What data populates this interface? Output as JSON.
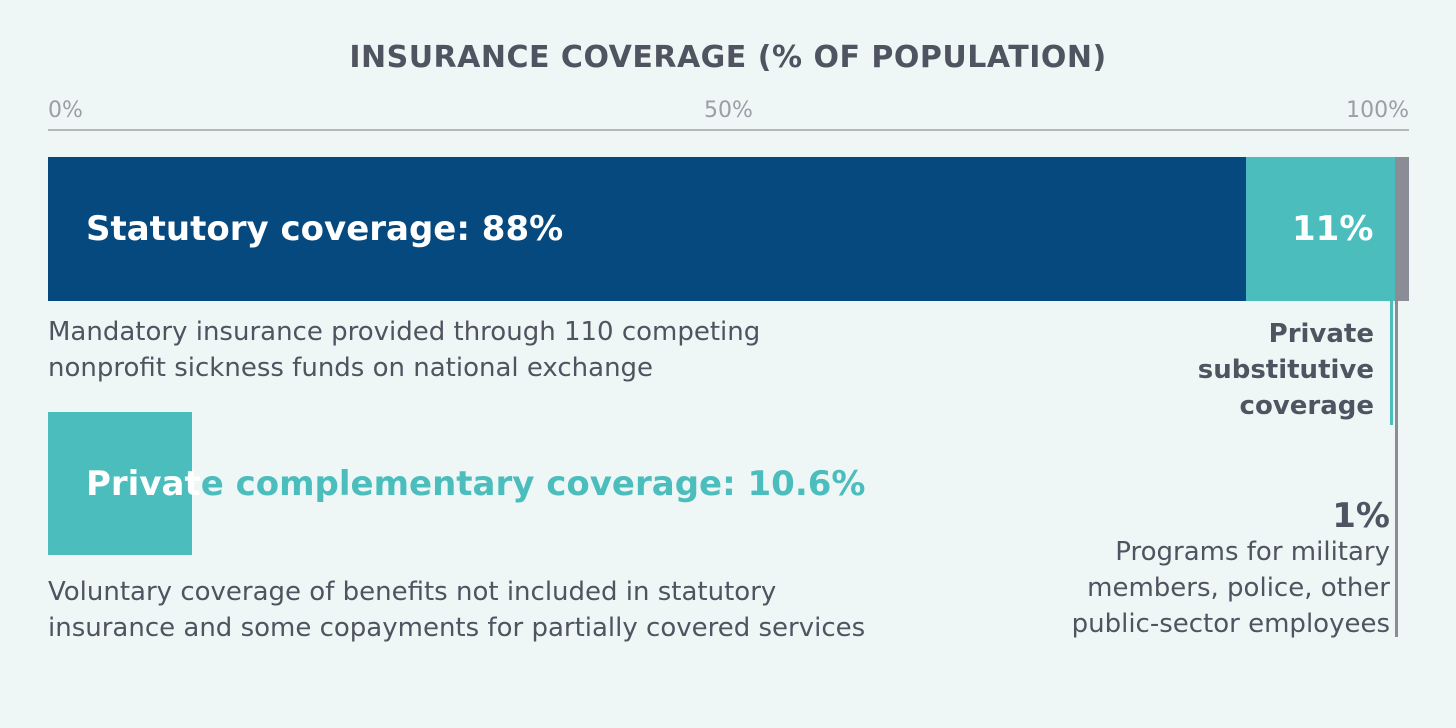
{
  "chart_data": {
    "type": "bar",
    "title": "INSURANCE COVERAGE (% OF POPULATION)",
    "xlim": [
      0,
      100
    ],
    "ticks": [
      "0%",
      "50%",
      "100%"
    ],
    "tick_values": [
      0,
      50,
      100
    ],
    "series": [
      {
        "name": "Statutory coverage",
        "value": 88,
        "label": "Statutory coverage: 88%",
        "color": "#05497e",
        "description": "Mandatory insurance provided through 110 competing nonprofit sickness funds on national exchange"
      },
      {
        "name": "Private substitutive coverage",
        "value": 11,
        "label": "11%",
        "color": "#4bbdbd",
        "caption_lines": [
          "Private",
          "substitutive",
          "coverage"
        ]
      },
      {
        "name": "Programs for military members, police, other public-sector employees",
        "value": 1,
        "label": "1%",
        "color": "#8b8d96",
        "caption_lines": [
          "Programs for military",
          "members, police, other",
          "public-sector employees"
        ]
      }
    ],
    "complementary": {
      "value": 10.6,
      "label_part1": "Privat",
      "label_part2": "e complementary coverage: 10.6%",
      "color": "#4bbdbd",
      "description_lines": [
        "Voluntary coverage of benefits not included in statutory",
        "insurance and some copayments for partially covered services"
      ]
    }
  },
  "statutory_description_lines": [
    "Mandatory insurance provided through 110 competing",
    "nonprofit sickness funds on national exchange"
  ]
}
